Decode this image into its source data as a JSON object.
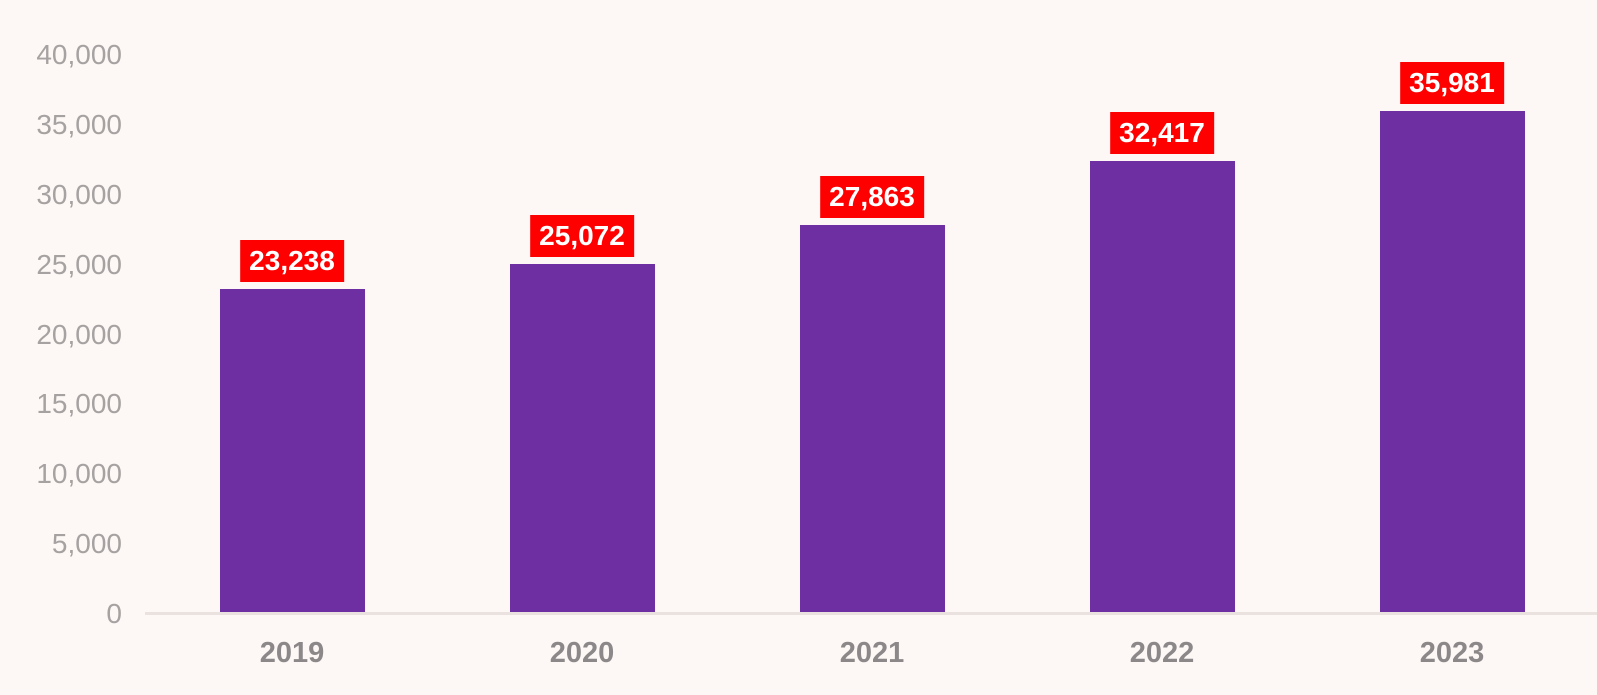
{
  "chart_data": {
    "type": "bar",
    "title": "",
    "categories": [
      "2019",
      "2020",
      "2021",
      "2022",
      "2023"
    ],
    "values": [
      23238,
      25072,
      27863,
      32417,
      35981
    ],
    "value_labels": [
      "23,238",
      "25,072",
      "27,863",
      "32,417",
      "35,981"
    ],
    "ylim": [
      0,
      40000
    ],
    "ytick_interval": 5000,
    "yticks": [
      0,
      5000,
      10000,
      15000,
      20000,
      25000,
      30000,
      35000,
      40000
    ],
    "ytick_labels": [
      "0",
      "5,000",
      "10,000",
      "15,000",
      "20,000",
      "25,000",
      "30,000",
      "35,000",
      "40,000"
    ],
    "grid": "off",
    "legend": "none",
    "colors": {
      "bar": "#6E2FA2",
      "label_background": "#FE0000",
      "label_text": "#FFFFFF",
      "ytick_text": "#A6A2A1",
      "category_text": "#8C8889",
      "axis_line": "#E9E2DF",
      "background": "#FDF8F6"
    }
  }
}
